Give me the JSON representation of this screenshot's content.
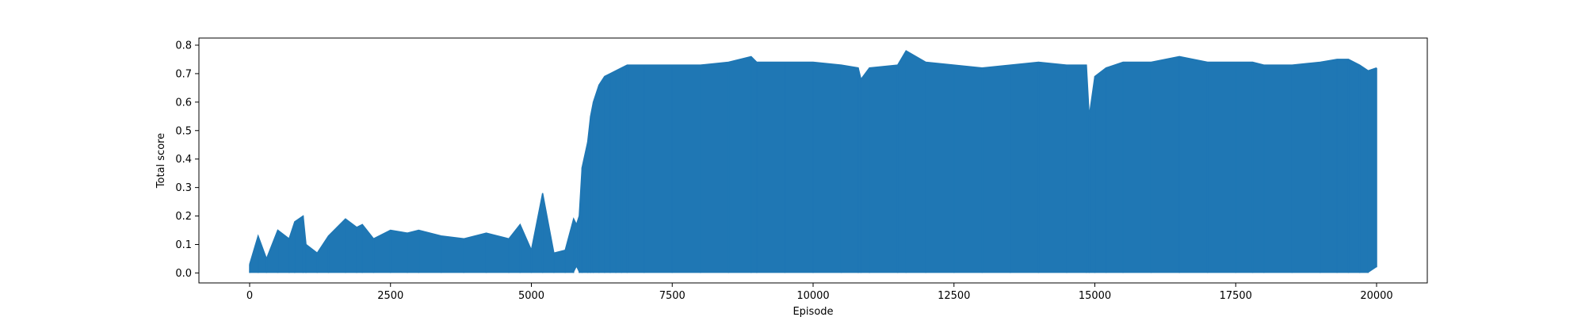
{
  "chart_data": {
    "type": "line",
    "title": "",
    "xlabel": "Episode",
    "ylabel": "Total score",
    "xlim": [
      -900,
      20900
    ],
    "ylim": [
      -0.035,
      0.825
    ],
    "xticks": [
      0,
      2500,
      5000,
      7500,
      10000,
      12500,
      15000,
      17500,
      20000
    ],
    "xtick_labels": [
      "0",
      "2500",
      "5000",
      "7500",
      "10000",
      "12500",
      "15000",
      "17500",
      "20000"
    ],
    "yticks": [
      0.0,
      0.1,
      0.2,
      0.3,
      0.4,
      0.5,
      0.6,
      0.7,
      0.8
    ],
    "ytick_labels": [
      "0.0",
      "0.1",
      "0.2",
      "0.3",
      "0.4",
      "0.5",
      "0.6",
      "0.7",
      "0.8"
    ],
    "grid": false,
    "line_color": "#1f77b4",
    "series": [
      {
        "x": [
          0,
          150,
          300,
          500,
          700,
          800,
          950,
          1000,
          1200,
          1400,
          1700,
          1900,
          2000,
          2200,
          2500,
          2800,
          3000,
          3400,
          3800,
          4200,
          4600,
          4800,
          5000,
          5200,
          5400,
          5600,
          5750,
          5800,
          5850,
          5900,
          6000,
          6050,
          6100,
          6200,
          6300,
          6400,
          6500,
          6600,
          6700,
          7000,
          7500,
          8000,
          8500,
          8900,
          9000,
          9500,
          10000,
          10500,
          10800,
          10850,
          11000,
          11500,
          11650,
          12000,
          12500,
          13000,
          13500,
          14000,
          14500,
          14850,
          14900,
          15000,
          15200,
          15500,
          16000,
          16500,
          17000,
          17500,
          17800,
          18000,
          18500,
          19000,
          19300,
          19500,
          19700,
          19850,
          20000
        ],
        "y": [
          0.03,
          0.13,
          0.05,
          0.15,
          0.12,
          0.18,
          0.2,
          0.1,
          0.07,
          0.13,
          0.19,
          0.16,
          0.17,
          0.12,
          0.15,
          0.14,
          0.15,
          0.13,
          0.12,
          0.14,
          0.12,
          0.17,
          0.08,
          0.28,
          0.07,
          0.08,
          0.19,
          0.17,
          0.2,
          0.37,
          0.46,
          0.55,
          0.6,
          0.66,
          0.69,
          0.7,
          0.71,
          0.72,
          0.73,
          0.73,
          0.73,
          0.73,
          0.74,
          0.76,
          0.74,
          0.74,
          0.74,
          0.73,
          0.72,
          0.68,
          0.72,
          0.73,
          0.78,
          0.74,
          0.73,
          0.72,
          0.73,
          0.74,
          0.73,
          0.73,
          0.55,
          0.69,
          0.72,
          0.74,
          0.74,
          0.76,
          0.74,
          0.74,
          0.74,
          0.73,
          0.73,
          0.74,
          0.75,
          0.75,
          0.73,
          0.71,
          0.72
        ],
        "min_y": [
          0.0,
          0.0,
          0.0,
          0.0,
          0.0,
          0.0,
          0.0,
          0.0,
          0.0,
          0.0,
          0.0,
          0.0,
          0.0,
          0.0,
          0.0,
          0.0,
          0.0,
          0.0,
          0.0,
          0.0,
          0.0,
          0.0,
          0.0,
          0.0,
          0.0,
          0.0,
          0.0,
          0.02,
          0.0,
          0.0,
          0.0,
          0.0,
          0.0,
          0.0,
          0.0,
          0.0,
          0.0,
          0.0,
          0.0,
          0.0,
          0.0,
          0.0,
          0.0,
          0.0,
          0.0,
          0.0,
          0.0,
          0.0,
          0.0,
          0.0,
          0.0,
          0.0,
          0.0,
          0.0,
          0.0,
          0.0,
          0.0,
          0.0,
          0.0,
          0.0,
          0.0,
          0.0,
          0.0,
          0.0,
          0.0,
          0.0,
          0.0,
          0.0,
          0.0,
          0.0,
          0.0,
          0.0,
          0.0,
          0.0,
          0.0,
          0.0,
          0.02
        ]
      }
    ]
  }
}
